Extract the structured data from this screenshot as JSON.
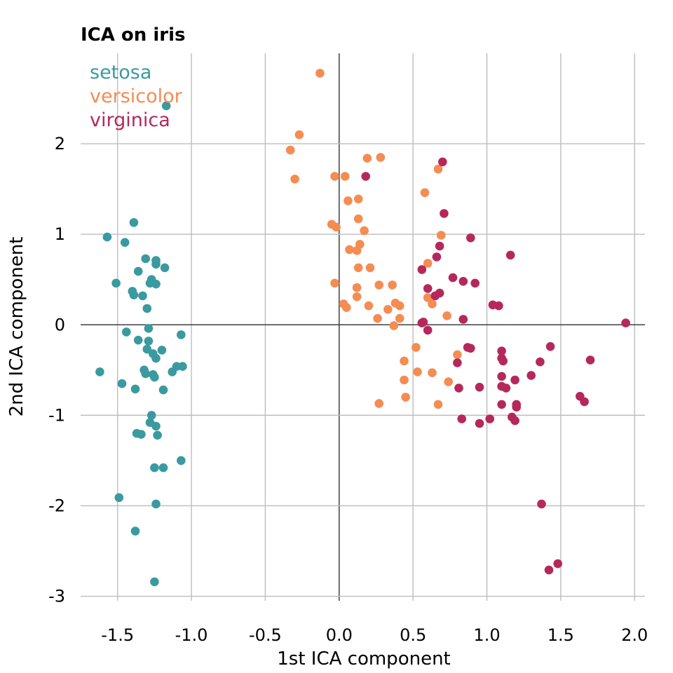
{
  "chart_data": {
    "type": "scatter",
    "title": "ICA on iris",
    "xlabel": "1st ICA component",
    "ylabel": "2nd ICA component",
    "xlim": [
      -1.75,
      2.07
    ],
    "ylim": [
      -3.05,
      3.0
    ],
    "xticks": [
      -1.5,
      -1.0,
      -0.5,
      0.0,
      0.5,
      1.0,
      1.5,
      2.0
    ],
    "xtick_labels": [
      "-1.5",
      "-1.0",
      "-0.5",
      "0.0",
      "0.5",
      "1.0",
      "1.5",
      "2.0"
    ],
    "yticks": [
      -3,
      -2,
      -1,
      0,
      1,
      2
    ],
    "ytick_labels": [
      "-3",
      "-2",
      "-1",
      "0",
      "1",
      "2"
    ],
    "grid": true,
    "legend_position": "top-left",
    "series": [
      {
        "name": "setosa",
        "color": "#3a9aa0",
        "points": [
          [
            -1.17,
            2.42
          ],
          [
            -1.57,
            0.97
          ],
          [
            -1.39,
            1.13
          ],
          [
            -1.45,
            0.91
          ],
          [
            -1.31,
            0.73
          ],
          [
            -1.24,
            0.71
          ],
          [
            -1.24,
            0.67
          ],
          [
            -1.18,
            0.63
          ],
          [
            -1.36,
            0.59
          ],
          [
            -1.27,
            0.5
          ],
          [
            -1.51,
            0.46
          ],
          [
            -1.28,
            0.46
          ],
          [
            -1.24,
            0.45
          ],
          [
            -1.4,
            0.37
          ],
          [
            -1.39,
            0.33
          ],
          [
            -1.33,
            0.32
          ],
          [
            -1.3,
            0.18
          ],
          [
            -1.29,
            -0.04
          ],
          [
            -1.44,
            -0.08
          ],
          [
            -1.07,
            -0.11
          ],
          [
            -1.36,
            -0.17
          ],
          [
            -1.29,
            -0.18
          ],
          [
            -1.3,
            -0.27
          ],
          [
            -1.2,
            -0.28
          ],
          [
            -1.26,
            -0.32
          ],
          [
            -1.24,
            -0.37
          ],
          [
            -1.1,
            -0.46
          ],
          [
            -1.06,
            -0.46
          ],
          [
            -1.62,
            -0.52
          ],
          [
            -1.32,
            -0.5
          ],
          [
            -1.31,
            -0.54
          ],
          [
            -1.13,
            -0.52
          ],
          [
            -1.26,
            -0.55
          ],
          [
            -1.25,
            -0.58
          ],
          [
            -1.47,
            -0.65
          ],
          [
            -1.38,
            -0.71
          ],
          [
            -1.19,
            -0.72
          ],
          [
            -1.27,
            -1.0
          ],
          [
            -1.28,
            -1.08
          ],
          [
            -1.24,
            -1.12
          ],
          [
            -1.37,
            -1.2
          ],
          [
            -1.34,
            -1.21
          ],
          [
            -1.23,
            -1.22
          ],
          [
            -1.07,
            -1.5
          ],
          [
            -1.25,
            -1.58
          ],
          [
            -1.19,
            -1.58
          ],
          [
            -1.49,
            -1.91
          ],
          [
            -1.24,
            -1.98
          ],
          [
            -1.38,
            -2.28
          ],
          [
            -1.25,
            -2.84
          ]
        ]
      },
      {
        "name": "versicolor",
        "color": "#f58c52",
        "points": [
          [
            -0.13,
            2.78
          ],
          [
            -0.27,
            2.1
          ],
          [
            -0.33,
            1.93
          ],
          [
            0.19,
            1.84
          ],
          [
            0.28,
            1.85
          ],
          [
            0.67,
            1.72
          ],
          [
            -0.03,
            1.64
          ],
          [
            0.04,
            1.64
          ],
          [
            -0.3,
            1.61
          ],
          [
            0.58,
            1.46
          ],
          [
            0.13,
            1.39
          ],
          [
            0.06,
            1.37
          ],
          [
            0.13,
            1.17
          ],
          [
            -0.05,
            1.11
          ],
          [
            -0.02,
            1.08
          ],
          [
            0.17,
            1.04
          ],
          [
            0.69,
            0.99
          ],
          [
            0.14,
            0.89
          ],
          [
            0.07,
            0.83
          ],
          [
            0.12,
            0.82
          ],
          [
            0.6,
            0.68
          ],
          [
            0.13,
            0.63
          ],
          [
            0.21,
            0.63
          ],
          [
            -0.03,
            0.46
          ],
          [
            0.27,
            0.44
          ],
          [
            0.36,
            0.44
          ],
          [
            0.12,
            0.41
          ],
          [
            0.12,
            0.31
          ],
          [
            0.03,
            0.23
          ],
          [
            0.38,
            0.24
          ],
          [
            0.63,
            0.23
          ],
          [
            0.05,
            0.19
          ],
          [
            0.2,
            0.21
          ],
          [
            0.41,
            0.21
          ],
          [
            0.33,
            0.17
          ],
          [
            0.73,
            0.1
          ],
          [
            0.26,
            0.07
          ],
          [
            0.41,
            0.07
          ],
          [
            0.37,
            -0.01
          ],
          [
            0.52,
            -0.25
          ],
          [
            0.8,
            -0.33
          ],
          [
            0.44,
            -0.4
          ],
          [
            0.53,
            -0.52
          ],
          [
            0.63,
            -0.53
          ],
          [
            0.44,
            -0.61
          ],
          [
            0.74,
            -0.63
          ],
          [
            0.45,
            -0.8
          ],
          [
            0.27,
            -0.87
          ],
          [
            0.67,
            -0.88
          ],
          [
            0.6,
            0.3
          ]
        ]
      },
      {
        "name": "virginica",
        "color": "#b5285c",
        "points": [
          [
            0.7,
            1.8
          ],
          [
            0.18,
            1.64
          ],
          [
            0.71,
            1.23
          ],
          [
            0.89,
            0.96
          ],
          [
            0.68,
            0.87
          ],
          [
            1.16,
            0.77
          ],
          [
            0.66,
            0.75
          ],
          [
            0.56,
            0.61
          ],
          [
            0.77,
            0.52
          ],
          [
            0.84,
            0.48
          ],
          [
            0.92,
            0.46
          ],
          [
            0.68,
            0.35
          ],
          [
            0.65,
            0.32
          ],
          [
            1.04,
            0.22
          ],
          [
            1.08,
            0.21
          ],
          [
            0.84,
            0.06
          ],
          [
            0.56,
            0.02
          ],
          [
            0.57,
            0.03
          ],
          [
            0.6,
            -0.06
          ],
          [
            1.94,
            0.02
          ],
          [
            0.87,
            -0.25
          ],
          [
            0.89,
            -0.26
          ],
          [
            1.1,
            -0.29
          ],
          [
            1.43,
            -0.24
          ],
          [
            1.1,
            -0.37
          ],
          [
            1.11,
            -0.4
          ],
          [
            0.8,
            -0.42
          ],
          [
            1.36,
            -0.41
          ],
          [
            1.7,
            -0.39
          ],
          [
            1.3,
            -0.56
          ],
          [
            1.1,
            -0.57
          ],
          [
            1.19,
            -0.61
          ],
          [
            1.1,
            -0.68
          ],
          [
            1.13,
            -0.7
          ],
          [
            0.95,
            -0.69
          ],
          [
            0.81,
            -0.7
          ],
          [
            1.63,
            -0.79
          ],
          [
            1.66,
            -0.85
          ],
          [
            1.2,
            -0.88
          ],
          [
            1.1,
            -0.88
          ],
          [
            1.2,
            -0.91
          ],
          [
            0.83,
            -1.04
          ],
          [
            1.02,
            -1.04
          ],
          [
            1.17,
            -1.02
          ],
          [
            1.19,
            -1.06
          ],
          [
            0.95,
            -1.09
          ],
          [
            1.37,
            -1.98
          ],
          [
            1.48,
            -2.64
          ],
          [
            1.42,
            -2.71
          ],
          [
            0.6,
            0.4
          ]
        ]
      }
    ]
  }
}
